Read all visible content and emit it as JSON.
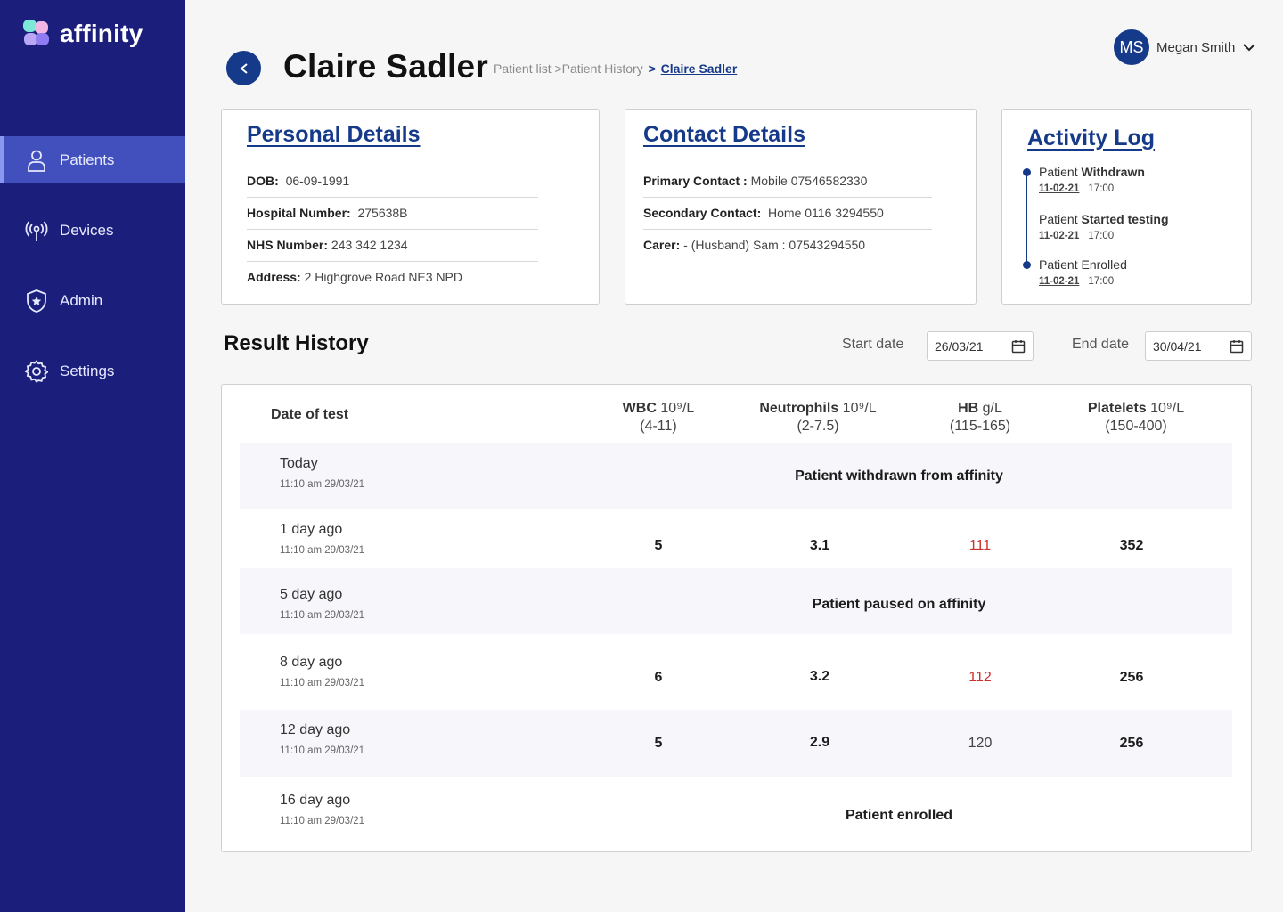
{
  "brand": {
    "name": "affinity"
  },
  "sidebar": {
    "items": [
      {
        "label": "Patients",
        "icon": "user-icon",
        "active": true
      },
      {
        "label": "Devices",
        "icon": "antenna-icon",
        "active": false
      },
      {
        "label": "Admin",
        "icon": "shield-star-icon",
        "active": false
      },
      {
        "label": "Settings",
        "icon": "gear-icon",
        "active": false
      }
    ]
  },
  "header": {
    "title": "Claire Sadler",
    "breadcrumb": {
      "part1": "Patient list",
      "part2": ">Patient History",
      "sep": ">",
      "current": "Claire Sadler"
    },
    "user": {
      "initials": "MS",
      "name": "Megan Smith"
    }
  },
  "personal": {
    "title": "Personal Details",
    "dob_label": "DOB:",
    "dob": "06-09-1991",
    "hospital_label": "Hospital Number:",
    "hospital": "275638B",
    "nhs_label": "NHS Number:",
    "nhs": "243 342 1234",
    "address_label": "Address:",
    "address": "2 Highgrove Road NE3 NPD"
  },
  "contact": {
    "title": "Contact Details",
    "primary_label": "Primary Contact :",
    "primary": "Mobile 07546582330",
    "secondary_label": "Secondary Contact:",
    "secondary": "Home 0116 3294550",
    "carer_label": "Carer:",
    "carer": "- (Husband) Sam : 07543294550"
  },
  "activity": {
    "title": "Activity Log",
    "items": [
      {
        "prefix": "Patient",
        "action": "Withdrawn",
        "date": "11-02-21",
        "time": "17:00"
      },
      {
        "prefix": "Patient",
        "action": "Started testing",
        "date": "11-02-21",
        "time": "17:00"
      },
      {
        "prefix": "Patient",
        "action": "Enrolled",
        "date": "11-02-21",
        "time": "17:00"
      }
    ]
  },
  "results": {
    "title": "Result History",
    "start_label": "Start date",
    "start_value": "26/03/21",
    "end_label": "End date",
    "end_value": "30/04/21",
    "headers": {
      "date": "Date of test",
      "wbc": "WBC",
      "wbc_unit": "10⁹/L",
      "wbc_range": "(4-11)",
      "neut": "Neutrophils",
      "neut_unit": "10⁹/L",
      "neut_range": "(2-7.5)",
      "hb": "HB",
      "hb_unit": "g/L",
      "hb_range": "(115-165)",
      "plt": "Platelets",
      "plt_unit": "10⁹/L",
      "plt_range": "(150-400)"
    },
    "rows": [
      {
        "when": "Today",
        "stamp": "11:10 am  29/03/21",
        "event": "Patient withdrawn from affinity"
      },
      {
        "when": "1 day ago",
        "stamp": "11:10 am  29/03/21",
        "wbc": "5",
        "neut": "3.1",
        "hb": "111",
        "plt": "352",
        "hb_status": "low"
      },
      {
        "when": "5 day ago",
        "stamp": "11:10 am  29/03/21",
        "event": "Patient paused on affinity"
      },
      {
        "when": "8 day ago",
        "stamp": "11:10 am  29/03/21",
        "wbc": "6",
        "neut": "3.2",
        "hb": "112",
        "plt": "256",
        "hb_status": "low"
      },
      {
        "when": "12 day ago",
        "stamp": "11:10 am  29/03/21",
        "wbc": "5",
        "neut": "2.9",
        "hb": "120",
        "plt": "256",
        "hb_status": "normal"
      },
      {
        "when": "16 day ago",
        "stamp": "11:10 am  29/03/21",
        "event": "Patient enrolled"
      }
    ]
  }
}
